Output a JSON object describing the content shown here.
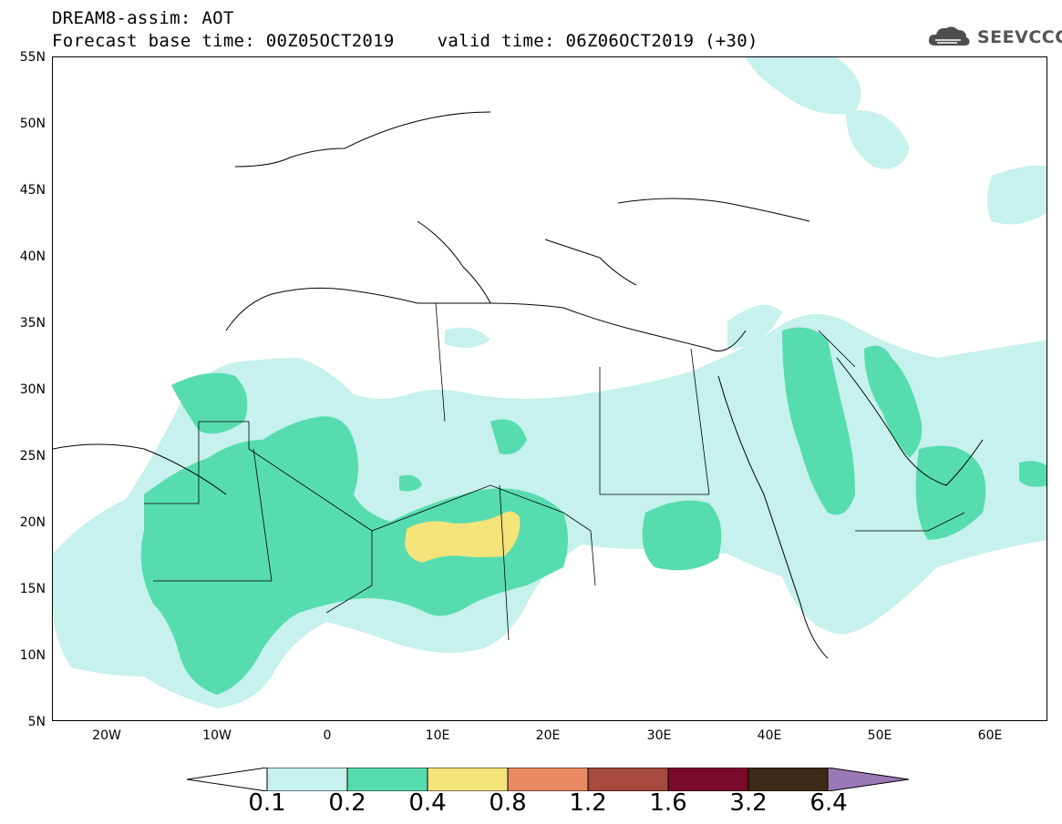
{
  "title": {
    "line1": "DREAM8-assim: AOT",
    "line2": "Forecast base time: 00Z05OCT2019    valid time: 06Z06OCT2019 (+30)"
  },
  "logo": {
    "text": "SEEVCCC",
    "icon": "cloud-icon"
  },
  "axes": {
    "lat_labels": [
      "55N",
      "50N",
      "45N",
      "40N",
      "35N",
      "30N",
      "25N",
      "20N",
      "15N",
      "10N",
      "5N"
    ],
    "lon_labels": [
      "20W",
      "10W",
      "0",
      "10E",
      "20E",
      "30E",
      "40E",
      "50E",
      "60E"
    ]
  },
  "colorbar": {
    "labels": [
      "0.1",
      "0.2",
      "0.4",
      "0.8",
      "1.2",
      "1.6",
      "3.2",
      "6.4"
    ],
    "colors": [
      "#c6f1ec",
      "#57dcb0",
      "#f4e47a",
      "#e88b65",
      "#a54a3c",
      "#7a0a2a",
      "#3e2a17",
      "#9b78b6"
    ],
    "under_color": "#ffffff"
  }
}
